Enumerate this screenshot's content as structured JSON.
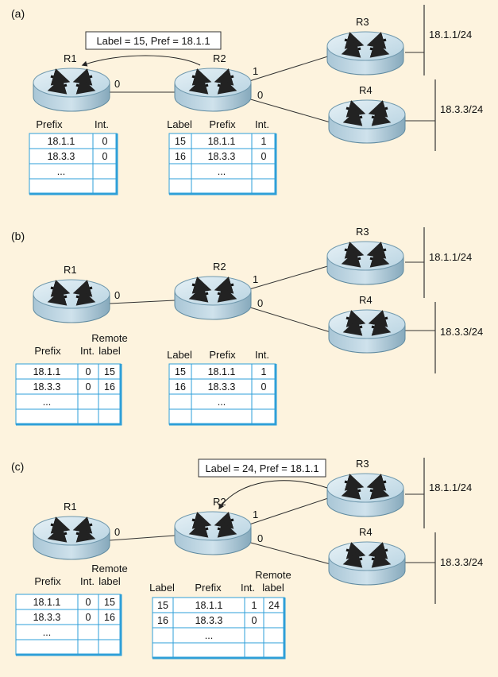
{
  "panels": [
    {
      "tag": "(a)",
      "routers": {
        "r1": "R1",
        "r2": "R2",
        "r3": "R3",
        "r4": "R4"
      },
      "ports": {
        "r1_out": "0",
        "r2_up": "1",
        "r2_down": "0"
      },
      "networks": {
        "net_top": "18.1.1/24",
        "net_bottom": "18.3.3/24"
      },
      "callout": "Label = 15, Pref = 18.1.1",
      "table_r1": {
        "headers": {
          "prefix": "Prefix",
          "int": "Int."
        },
        "rows": [
          [
            "18.1.1",
            "0"
          ],
          [
            "18.3.3",
            "0"
          ],
          [
            "...",
            ""
          ],
          [
            "",
            ""
          ]
        ]
      },
      "table_r2": {
        "headers": {
          "label": "Label",
          "prefix": "Prefix",
          "int": "Int."
        },
        "rows": [
          [
            "15",
            "18.1.1",
            "1"
          ],
          [
            "16",
            "18.3.3",
            "0"
          ],
          [
            "",
            "...",
            ""
          ],
          [
            "",
            "",
            ""
          ]
        ]
      }
    },
    {
      "tag": "(b)",
      "routers": {
        "r1": "R1",
        "r2": "R2",
        "r3": "R3",
        "r4": "R4"
      },
      "ports": {
        "r1_out": "0",
        "r2_up": "1",
        "r2_down": "0"
      },
      "networks": {
        "net_top": "18.1.1/24",
        "net_bottom": "18.3.3/24"
      },
      "table_r1": {
        "headers": {
          "prefix": "Prefix",
          "int": "Int.",
          "remote1": "Remote",
          "remote2": "label"
        },
        "rows": [
          [
            "18.1.1",
            "0",
            "15"
          ],
          [
            "18.3.3",
            "0",
            "16"
          ],
          [
            "...",
            "",
            ""
          ],
          [
            "",
            "",
            ""
          ]
        ]
      },
      "table_r2": {
        "headers": {
          "label": "Label",
          "prefix": "Prefix",
          "int": "Int."
        },
        "rows": [
          [
            "15",
            "18.1.1",
            "1"
          ],
          [
            "16",
            "18.3.3",
            "0"
          ],
          [
            "",
            "...",
            ""
          ],
          [
            "",
            "",
            ""
          ]
        ]
      }
    },
    {
      "tag": "(c)",
      "routers": {
        "r1": "R1",
        "r2": "R2",
        "r3": "R3",
        "r4": "R4"
      },
      "ports": {
        "r1_out": "0",
        "r2_up": "1",
        "r2_down": "0"
      },
      "networks": {
        "net_top": "18.1.1/24",
        "net_bottom": "18.3.3/24"
      },
      "callout": "Label = 24, Pref = 18.1.1",
      "table_r1": {
        "headers": {
          "prefix": "Prefix",
          "int": "Int.",
          "remote1": "Remote",
          "remote2": "label"
        },
        "rows": [
          [
            "18.1.1",
            "0",
            "15"
          ],
          [
            "18.3.3",
            "0",
            "16"
          ],
          [
            "...",
            "",
            ""
          ],
          [
            "",
            "",
            ""
          ]
        ]
      },
      "table_r2": {
        "headers": {
          "label": "Label",
          "prefix": "Prefix",
          "int": "Int.",
          "remote1": "Remote",
          "remote2": "label"
        },
        "rows": [
          [
            "15",
            "18.1.1",
            "1",
            "24"
          ],
          [
            "16",
            "18.3.3",
            "0",
            ""
          ],
          [
            "",
            "...",
            "",
            ""
          ],
          [
            "",
            "",
            "",
            ""
          ]
        ]
      }
    }
  ],
  "colors": {
    "background": "#fdf3de",
    "table_fill": "#ffffff",
    "table_border": "#2e9fd8",
    "router_top": "#cfe3ed",
    "router_side": "#8fb3c5",
    "line": "#333333"
  },
  "icons": {
    "router": "router-icon",
    "arrow": "curved-arrow-icon"
  }
}
